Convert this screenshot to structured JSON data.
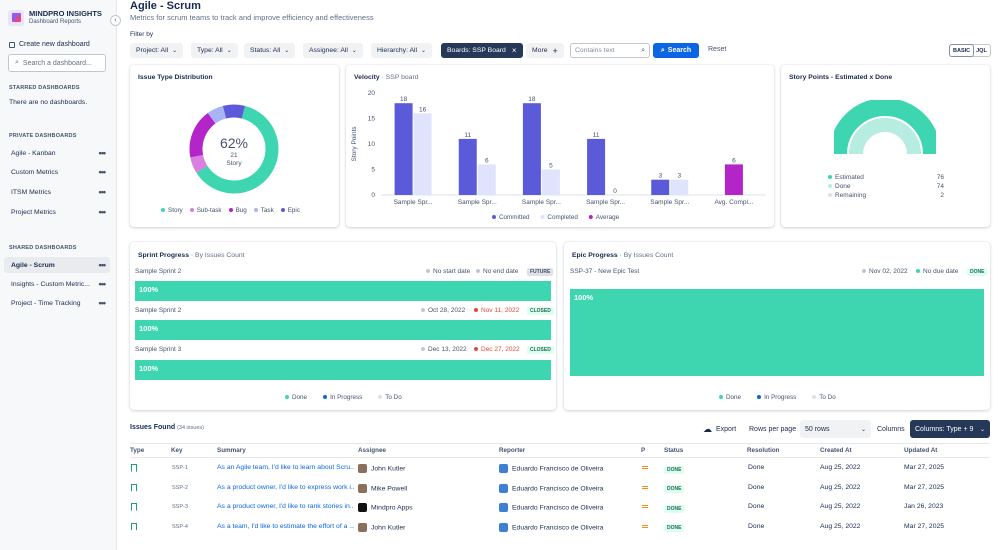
{
  "app": {
    "brand": "MINDPRO INSIGHTS",
    "brand_sub": "Dashboard Reports"
  },
  "sidebar": {
    "create_label": "Create new dashboard",
    "search_placeholder": "Search a dashboard...",
    "starred": {
      "title": "STARRED DASHBOARDS",
      "empty": "There are no dashboards."
    },
    "private": {
      "title": "PRIVATE DASHBOARDS",
      "items": [
        "Agile - Kanban",
        "Custom Metrics",
        "ITSM Metrics",
        "Project Metrics"
      ]
    },
    "shared": {
      "title": "SHARED DASHBOARDS",
      "items": [
        "Agile - Scrum",
        "Insights - Custom Metric...",
        "Project - Time Tracking"
      ]
    }
  },
  "header": {
    "title": "Agile - Scrum",
    "subtitle": "Metrics for scrum teams to track and improve efficiency and effectiveness"
  },
  "filters": {
    "label": "Filter by",
    "chips": [
      "Project: All",
      "Type: All",
      "Status: All",
      "Assignee: All",
      "Hierarchy: All"
    ],
    "active_chip": "Boards: SSP Board",
    "more": "More",
    "contains_placeholder": "Contains text",
    "search": "Search",
    "reset": "Reset",
    "modes": [
      "BASIC",
      "JQL"
    ]
  },
  "issue_type": {
    "title": "Issue Type Distribution",
    "center_pct": "62%",
    "center_count": "21",
    "center_label": "Story",
    "legend": [
      {
        "label": "Story",
        "color": "#3dd6b0"
      },
      {
        "label": "Sub-task",
        "color": "#d97fe0"
      },
      {
        "label": "Bug",
        "color": "#b325c9"
      },
      {
        "label": "Task",
        "color": "#a9b4f2"
      },
      {
        "label": "Epic",
        "color": "#5b5bd9"
      }
    ],
    "shares": [
      62,
      6,
      18,
      6,
      8
    ]
  },
  "velocity": {
    "title": "Velocity",
    "subtitle": "SSP board",
    "chart_data": {
      "type": "bar",
      "categories": [
        "Sample Spr...",
        "Sample Spr...",
        "Sample Spr...",
        "Sample Spr...",
        "Sample Spr...",
        "Avg. Compl..."
      ],
      "series": [
        {
          "name": "Committed",
          "values": [
            18,
            11,
            18,
            11,
            3,
            null
          ]
        },
        {
          "name": "Completed",
          "values": [
            16,
            6,
            5,
            0,
            3,
            null
          ]
        },
        {
          "name": "Average",
          "values": [
            null,
            null,
            null,
            null,
            null,
            6
          ]
        }
      ],
      "ylabel": "Story Points",
      "ylim": [
        0,
        20
      ],
      "yticks": [
        0,
        5,
        10,
        15,
        20
      ],
      "colors": [
        "#5b5bd9",
        "#dfe3fb",
        "#b325c9"
      ]
    }
  },
  "story_points": {
    "title": "Story Points - Estimated x Done",
    "rows": [
      {
        "label": "Estimated",
        "value": "76",
        "color": "#3dd6b0"
      },
      {
        "label": "Done",
        "value": "74",
        "color": "#b6ede0"
      },
      {
        "label": "Remaining",
        "value": "2",
        "color": "#dfe1e6"
      }
    ]
  },
  "sprint_progress": {
    "title": "Sprint Progress",
    "subtitle": "By Issues Count",
    "rows": [
      {
        "name": "Sample Sprint 2",
        "start": "No start date",
        "end": "No end date",
        "badge": "FUTURE",
        "pct": "100%"
      },
      {
        "name": "Sample Sprint 2",
        "start": "Oct 28, 2022",
        "end": "Nov 11, 2022",
        "badge": "CLOSED",
        "pct": "100%"
      },
      {
        "name": "Sample Sprint 3",
        "start": "Dec 13, 2022",
        "end": "Dec 27, 2022",
        "badge": "CLOSED",
        "pct": "100%"
      }
    ],
    "legend": [
      "Done",
      "In Progress",
      "To Do"
    ]
  },
  "epic_progress": {
    "title": "Epic Progress",
    "subtitle": "By Issues Count",
    "row": {
      "name": "SSP-37 - New Epic Test",
      "start": "Nov 02, 2022",
      "end": "No due date",
      "badge": "DONE",
      "pct": "100%"
    },
    "legend": [
      "Done",
      "In Progress",
      "To Do"
    ]
  },
  "issues": {
    "title": "Issues Found",
    "count": "(34 issues)",
    "export": "Export",
    "rows_per_page_label": "Rows per page",
    "rows_per_page": "50 rows",
    "columns_label": "Columns",
    "columns_button": "Columns: Type + 9",
    "headers": [
      "Type",
      "Key",
      "Summary",
      "Assignee",
      "Reporter",
      "P",
      "Status",
      "Resolution",
      "Created At",
      "Updated At"
    ],
    "rows": [
      {
        "key": "SSP-1",
        "summary": "As an Agile team, I'd like to learn about Scru...",
        "assignee": "John Kutler",
        "reporter": "Eduardo Francisco de Oliveira",
        "status": "DONE",
        "resolution": "Done",
        "created": "Aug 25, 2022",
        "updated": "Mar 27, 2025"
      },
      {
        "key": "SSP-2",
        "summary": "As a product owner, I'd like to express work i...",
        "assignee": "Mike Powell",
        "reporter": "Eduardo Francisco de Oliveira",
        "status": "DONE",
        "resolution": "Done",
        "created": "Aug 25, 2022",
        "updated": "Mar 27, 2025"
      },
      {
        "key": "SSP-3",
        "summary": "As a product owner, I'd like to rank stories in...",
        "assignee": "Mindpro Apps",
        "reporter": "Eduardo Francisco de Oliveira",
        "status": "DONE",
        "resolution": "Done",
        "created": "Aug 25, 2022",
        "updated": "Jan 26, 2023"
      },
      {
        "key": "SSP-4",
        "summary": "As a team, I'd like to estimate the effort of a ...",
        "assignee": "John Kutler",
        "reporter": "Eduardo Francisco de Oliveira",
        "status": "DONE",
        "resolution": "Done",
        "created": "Aug 25, 2022",
        "updated": "Mar 27, 2025"
      }
    ]
  }
}
